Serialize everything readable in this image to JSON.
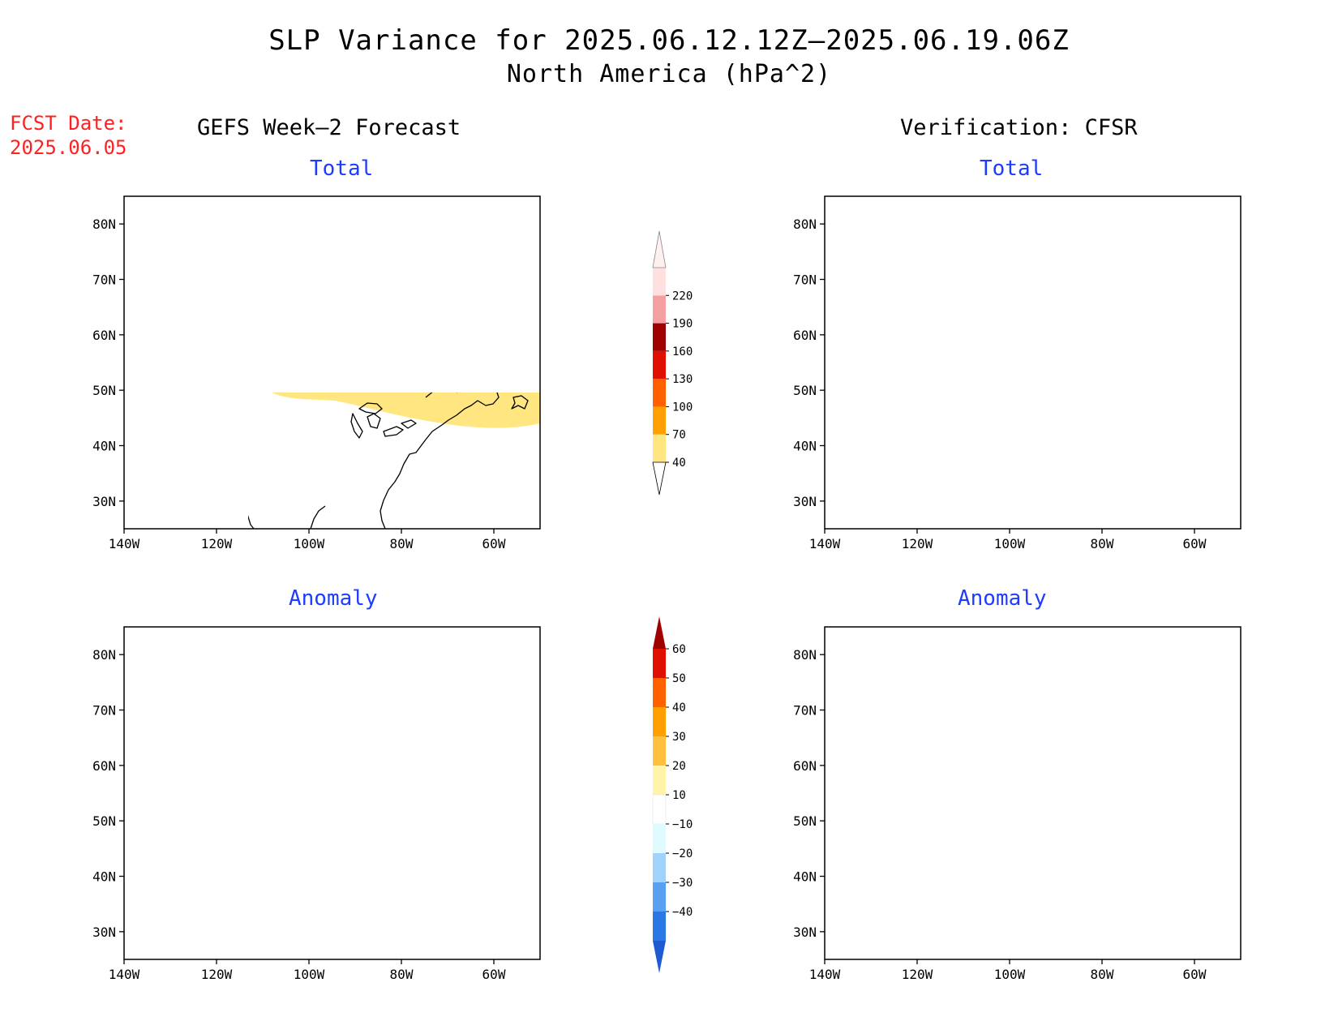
{
  "title": "SLP Variance for 2025.06.12.12Z–2025.06.19.06Z",
  "subtitle": "North America (hPa^2)",
  "fcst_date_label": "FCST Date:",
  "fcst_date": "2025.06.05",
  "columns": {
    "left": "GEFS Week–2 Forecast",
    "right": "Verification: CFSR"
  },
  "panels": [
    {
      "id": "gefs-total",
      "label": "Total"
    },
    {
      "id": "cfsr-total",
      "label": "Total"
    },
    {
      "id": "gefs-anomaly",
      "label": "Anomaly"
    },
    {
      "id": "cfsr-anomaly",
      "label": "Anomaly"
    }
  ],
  "axes": {
    "lat_labels": [
      "80N",
      "70N",
      "60N",
      "50N",
      "40N",
      "30N"
    ],
    "lon_labels": [
      "140W",
      "120W",
      "100W",
      "80W",
      "60W"
    ],
    "lat_range": [
      25,
      85
    ],
    "lon_range": [
      -140,
      -50
    ]
  },
  "colorbars": {
    "total": {
      "levels": [
        "40",
        "70",
        "100",
        "130",
        "160",
        "190",
        "220"
      ],
      "colors": [
        "#ffe680",
        "#ffa000",
        "#ff6000",
        "#e01000",
        "#a00000",
        "#f4a0a0",
        "#ffe0e0"
      ]
    },
    "anomaly": {
      "levels": [
        "60",
        "50",
        "40",
        "30",
        "20",
        "10",
        "−10",
        "−20",
        "−30",
        "−40"
      ],
      "colors": [
        "#a00000",
        "#e01000",
        "#ff6000",
        "#ffa000",
        "#ffc040",
        "#fff4a8",
        "#ffffff",
        "#e0fbff",
        "#a0d2fa",
        "#5aa0f0",
        "#2a78e6",
        "#1e5ad2"
      ]
    }
  }
}
